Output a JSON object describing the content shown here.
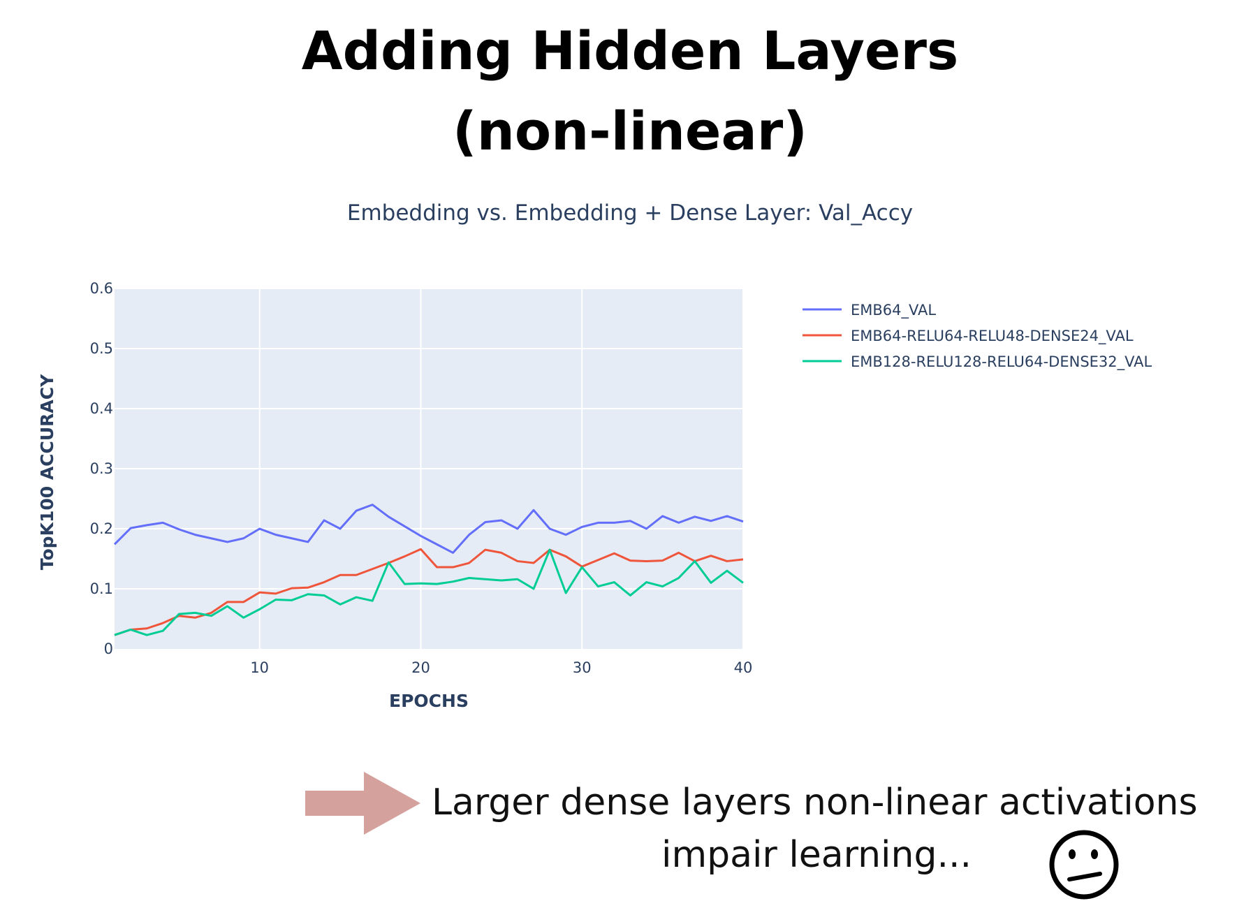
{
  "slide": {
    "title_line1": "Adding Hidden Layers",
    "title_line2": "(non-linear)",
    "note_line1": "Larger dense layers non-linear activations",
    "note_line2": "impair learning...",
    "arrow_color": "#d4a19d",
    "arrow_icon": "right-arrow-icon",
    "face_icon": "confused-face-icon"
  },
  "chart_data": {
    "type": "line",
    "title": "Embedding vs. Embedding + Dense Layer: Val_Accy",
    "xlabel": "EPOCHS",
    "ylabel": "TopK100 ACCURACY",
    "xlim": [
      1,
      40
    ],
    "ylim": [
      0,
      0.6
    ],
    "xticks": [
      10,
      20,
      30,
      40
    ],
    "yticks": [
      0,
      0.1,
      0.2,
      0.3,
      0.4,
      0.5,
      0.6
    ],
    "ytick_labels": [
      "0",
      "0.1",
      "0.2",
      "0.3",
      "0.4",
      "0.5",
      "0.6"
    ],
    "grid": true,
    "plot_background": "#e5ecf6",
    "legend_position": "top-right",
    "x": [
      1,
      2,
      3,
      4,
      5,
      6,
      7,
      8,
      9,
      10,
      11,
      12,
      13,
      14,
      15,
      16,
      17,
      18,
      19,
      20,
      21,
      22,
      23,
      24,
      25,
      26,
      27,
      28,
      29,
      30,
      31,
      32,
      33,
      34,
      35,
      36,
      37,
      38,
      39,
      40
    ],
    "series": [
      {
        "name": "EMB64_VAL",
        "color": "#636efa",
        "values": [
          0.174,
          0.201,
          0.206,
          0.21,
          0.199,
          0.19,
          0.184,
          0.178,
          0.184,
          0.2,
          0.19,
          0.184,
          0.178,
          0.214,
          0.2,
          0.23,
          0.24,
          0.22,
          0.204,
          0.188,
          0.174,
          0.16,
          0.19,
          0.211,
          0.214,
          0.2,
          0.231,
          0.2,
          0.19,
          0.203,
          0.21,
          0.21,
          0.213,
          0.2,
          0.221,
          0.21,
          0.22,
          0.213,
          0.221,
          0.212
        ]
      },
      {
        "name": "EMB64-RELU64-RELU48-DENSE24_VAL",
        "color": "#ef553b",
        "values": [
          0.023,
          0.032,
          0.034,
          0.043,
          0.055,
          0.052,
          0.06,
          0.078,
          0.078,
          0.094,
          0.092,
          0.101,
          0.102,
          0.111,
          0.123,
          0.123,
          0.133,
          0.143,
          0.154,
          0.166,
          0.136,
          0.136,
          0.143,
          0.165,
          0.16,
          0.146,
          0.143,
          0.165,
          0.154,
          0.137,
          0.148,
          0.159,
          0.147,
          0.146,
          0.147,
          0.16,
          0.146,
          0.155,
          0.146,
          0.149
        ]
      },
      {
        "name": "EMB128-RELU128-RELU64-DENSE32_VAL",
        "color": "#00cc96",
        "values": [
          0.023,
          0.032,
          0.023,
          0.03,
          0.058,
          0.06,
          0.055,
          0.071,
          0.052,
          0.066,
          0.082,
          0.081,
          0.091,
          0.089,
          0.074,
          0.086,
          0.08,
          0.144,
          0.108,
          0.109,
          0.108,
          0.112,
          0.118,
          0.116,
          0.114,
          0.116,
          0.1,
          0.165,
          0.093,
          0.136,
          0.104,
          0.111,
          0.089,
          0.111,
          0.104,
          0.118,
          0.146,
          0.11,
          0.13,
          0.11
        ]
      }
    ]
  }
}
